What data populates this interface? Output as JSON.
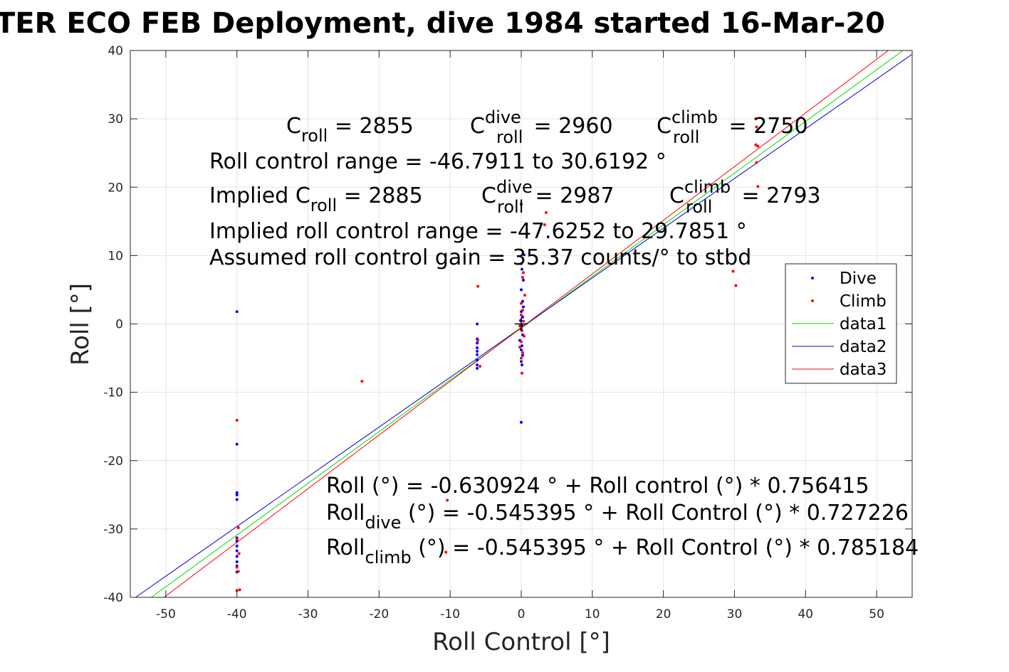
{
  "chart_data": {
    "type": "scatter",
    "title": "TER ECO FEB Deployment, dive 1984 started 16-Mar-20",
    "xlabel": "Roll Control [°]",
    "ylabel": "Roll [°]",
    "xlim": [
      -55,
      55
    ],
    "ylim": [
      -40,
      40
    ],
    "xticks": [
      -50,
      -40,
      -30,
      -20,
      -10,
      0,
      10,
      20,
      30,
      40,
      50
    ],
    "yticks": [
      -40,
      -30,
      -20,
      -10,
      0,
      10,
      20,
      30,
      40
    ],
    "grid": true,
    "legend_position": "right",
    "legend": [
      "Dive",
      "Climb",
      "data1",
      "data2",
      "data3"
    ],
    "colors": {
      "dive": "#0000ff",
      "climb": "#ff0000",
      "data1": "#00dd00",
      "data2": "#0000cc",
      "data3": "#ff0000"
    },
    "series": [
      {
        "name": "Dive",
        "kind": "points",
        "color": "#0000ff",
        "points": [
          [
            -40,
            1.8
          ],
          [
            -40,
            -17.6
          ],
          [
            -40,
            -24.7
          ],
          [
            -40,
            -25.0
          ],
          [
            -40,
            -25.7
          ],
          [
            -40,
            -31.3
          ],
          [
            -40,
            -31.8
          ],
          [
            -40,
            -32.5
          ],
          [
            -40,
            -33.2
          ],
          [
            -40,
            -34.0
          ],
          [
            -40,
            -34.8
          ],
          [
            -40,
            -35.4
          ],
          [
            -40,
            -36.3
          ],
          [
            -6.2,
            0
          ],
          [
            -6.2,
            -2.2
          ],
          [
            -6.2,
            -2.8
          ],
          [
            -6.2,
            -3.5
          ],
          [
            -6.2,
            -4.0
          ],
          [
            -6.2,
            -4.5
          ],
          [
            -6.2,
            -5.3
          ],
          [
            -6.2,
            -6.0
          ],
          [
            -6.2,
            -6.5
          ],
          [
            0,
            17.5
          ],
          [
            0.4,
            10.1
          ],
          [
            0.1,
            8.0
          ],
          [
            0.3,
            6.4
          ],
          [
            0,
            5.0
          ],
          [
            0.2,
            3.3
          ],
          [
            0.3,
            2.5
          ],
          [
            0,
            1.8
          ],
          [
            0.2,
            1.0
          ],
          [
            -0.1,
            0.5
          ],
          [
            0.1,
            -0.2
          ],
          [
            0,
            -0.8
          ],
          [
            0.2,
            -1.6
          ],
          [
            -0.2,
            -2.4
          ],
          [
            0.1,
            -3.2
          ],
          [
            0,
            -3.8
          ],
          [
            0.2,
            -4.6
          ],
          [
            0,
            -5.5
          ],
          [
            0.1,
            -6.0
          ],
          [
            0,
            -14.4
          ]
        ]
      },
      {
        "name": "Climb",
        "kind": "points",
        "color": "#ff0000",
        "points": [
          [
            -40,
            -14.1
          ],
          [
            -39.8,
            -29.8
          ],
          [
            -40,
            -31.5
          ],
          [
            -39.7,
            -33.6
          ],
          [
            -40,
            -35.6
          ],
          [
            -39.8,
            -36.2
          ],
          [
            -39.6,
            -38.9
          ],
          [
            -40,
            -39.0
          ],
          [
            -22.4,
            -8.4
          ],
          [
            -10.4,
            -25.8
          ],
          [
            -10.6,
            -33.4
          ],
          [
            -6.1,
            5.5
          ],
          [
            -6.1,
            -2.4
          ],
          [
            -5.8,
            -6.2
          ],
          [
            0,
            8.8
          ],
          [
            0.3,
            7.5
          ],
          [
            0.2,
            6.8
          ],
          [
            0.5,
            4.2
          ],
          [
            0,
            3.0
          ],
          [
            0.2,
            2.0
          ],
          [
            0,
            1.3
          ],
          [
            0.3,
            0.4
          ],
          [
            -0.2,
            -0.3
          ],
          [
            0.1,
            -1.0
          ],
          [
            0.4,
            -1.8
          ],
          [
            0,
            -2.6
          ],
          [
            -0.2,
            -3.4
          ],
          [
            0.2,
            -4.2
          ],
          [
            0,
            -5.0
          ],
          [
            0.1,
            -7.2
          ],
          [
            3.5,
            16.3
          ],
          [
            3.3,
            14.5
          ],
          [
            29.8,
            7.7
          ],
          [
            30.2,
            5.6
          ],
          [
            33.0,
            30.0
          ],
          [
            33.1,
            28.8
          ],
          [
            33.2,
            28.2
          ],
          [
            33.0,
            26.2
          ],
          [
            33.3,
            26.0
          ],
          [
            33.1,
            23.6
          ],
          [
            33.3,
            20.1
          ]
        ]
      },
      {
        "name": "data1",
        "kind": "line",
        "color": "#00dd00",
        "intercept": -0.630924,
        "slope": 0.756415
      },
      {
        "name": "data2",
        "kind": "line",
        "color": "#0000cc",
        "intercept": -0.545395,
        "slope": 0.727226
      },
      {
        "name": "data3",
        "kind": "line",
        "color": "#ff0000",
        "intercept": -0.545395,
        "slope": 0.785184
      }
    ],
    "crosshair": [
      0,
      0
    ]
  },
  "annotations": {
    "line1": {
      "c1_base": "C",
      "c1_sub": "roll",
      "c1_val": " = 2855",
      "c2_base": "C",
      "c2_sup": "dive",
      "c2_sub": "roll",
      "c2_val": " = 2960",
      "c3_base": "C",
      "c3_sup": "climb",
      "c3_sub": "roll",
      "c3_val": " = 2750"
    },
    "line2": "Roll control range = -46.7911 to 30.6192 °",
    "line3": {
      "c1_pre": "Implied C",
      "c1_sub": "roll",
      "c1_val": " = 2885",
      "c2_base": "C",
      "c2_sup": "dive",
      "c2_sub": "roll",
      "c2_val": " = 2987",
      "c3_base": "C",
      "c3_sup": "climb",
      "c3_sub": "roll",
      "c3_val": " = 2793"
    },
    "line4": "Implied roll control range = -47.6252 to 29.7851 °",
    "line5": "Assumed roll control gain = 35.37 counts/° to stbd",
    "fit1": "Roll (°) = -0.630924 ° + Roll control (°) * 0.756415",
    "fit2": {
      "pre": "Roll",
      "sub": "dive",
      "post": " (°) = -0.545395 ° + Roll Control (°) * 0.727226"
    },
    "fit3": {
      "pre": "Roll",
      "sub": "climb",
      "post": " (°) = -0.545395 ° + Roll Control (°) * 0.785184"
    }
  }
}
